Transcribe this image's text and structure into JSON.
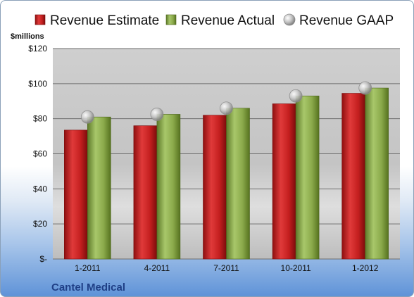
{
  "chart_data": {
    "type": "bar",
    "ylabel": "$millions",
    "ylim": [
      0,
      120
    ],
    "yticks": [
      {
        "value": 0,
        "label": "$-"
      },
      {
        "value": 20,
        "label": "$20"
      },
      {
        "value": 40,
        "label": "$40"
      },
      {
        "value": 60,
        "label": "$60"
      },
      {
        "value": 80,
        "label": "$80"
      },
      {
        "value": 100,
        "label": "$100"
      },
      {
        "value": 120,
        "label": "$120"
      }
    ],
    "categories": [
      "1-2011",
      "4-2011",
      "7-2011",
      "10-2011",
      "1-2012"
    ],
    "series": [
      {
        "name": "Revenue Estimate",
        "type": "bar",
        "color": "#cc2222",
        "values": [
          73.5,
          76,
          82,
          88.5,
          94.5
        ]
      },
      {
        "name": "Revenue Actual",
        "type": "bar",
        "color": "#8fae4c",
        "values": [
          81,
          82.5,
          86,
          93,
          97.5
        ]
      },
      {
        "name": "Revenue GAAP",
        "type": "marker",
        "color": "#b8b8b8",
        "values": [
          81,
          82.5,
          86,
          93,
          97.5
        ]
      }
    ],
    "legend_position": "top",
    "grid": true
  },
  "caption": "Cantel Medical"
}
